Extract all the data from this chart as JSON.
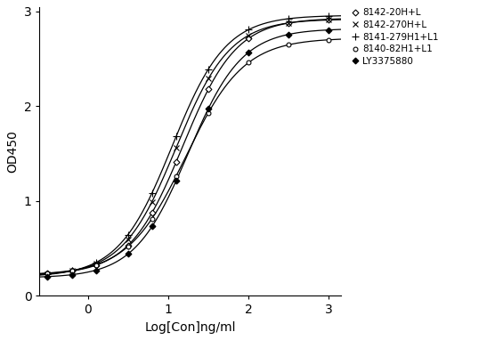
{
  "xlabel": "Log[Con]ng/ml",
  "ylabel": "OD450",
  "xlim": [
    -0.6,
    3.15
  ],
  "ylim": [
    0,
    3.05
  ],
  "xticks": [
    0,
    1,
    2,
    3
  ],
  "yticks": [
    0,
    1,
    2,
    3
  ],
  "series": [
    {
      "label": "8142-20H+L",
      "marker": "D",
      "marker_size": 3.5,
      "marker_facecolor": "white",
      "marker_edgecolor": "black",
      "line_color": "black",
      "bottom": 0.22,
      "top": 2.93,
      "ec50_log": 1.18,
      "hill": 1.3
    },
    {
      "label": "8142-270H+L",
      "marker": "x",
      "marker_size": 4.5,
      "marker_facecolor": "black",
      "marker_edgecolor": "black",
      "line_color": "black",
      "bottom": 0.21,
      "top": 2.92,
      "ec50_log": 1.1,
      "hill": 1.3
    },
    {
      "label": "8141-279H1+L1",
      "marker": "+",
      "marker_size": 5.5,
      "marker_facecolor": "black",
      "marker_edgecolor": "black",
      "line_color": "black",
      "bottom": 0.2,
      "top": 2.96,
      "ec50_log": 1.05,
      "hill": 1.3
    },
    {
      "label": "8140-82H1+L1",
      "marker": "o",
      "marker_size": 3.5,
      "marker_facecolor": "white",
      "marker_edgecolor": "black",
      "line_color": "black",
      "bottom": 0.22,
      "top": 2.72,
      "ec50_log": 1.22,
      "hill": 1.2
    },
    {
      "label": "LY3375880",
      "marker": "D",
      "marker_size": 3.5,
      "marker_facecolor": "black",
      "marker_edgecolor": "black",
      "line_color": "black",
      "bottom": 0.19,
      "top": 2.82,
      "ec50_log": 1.25,
      "hill": 1.3
    }
  ],
  "data_points_x": [
    -0.5,
    -0.2,
    0.1,
    0.5,
    0.8,
    1.1,
    1.5,
    2.0,
    2.5,
    3.0
  ],
  "background_color": "#ffffff",
  "figure_width": 5.47,
  "figure_height": 3.82,
  "dpi": 100
}
